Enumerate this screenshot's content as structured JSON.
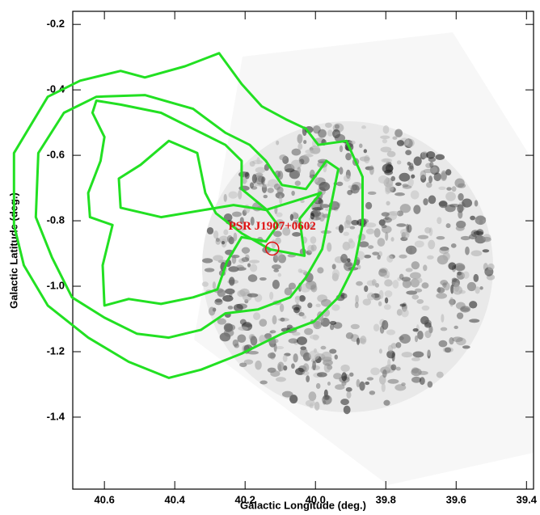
{
  "chart_data": {
    "type": "contour",
    "xlabel": "Galactic Longitude (deg.)",
    "ylabel": "Galactic Latitude (deg.)",
    "xlim": [
      40.69,
      39.38
    ],
    "ylim": [
      -1.62,
      -0.16
    ],
    "xticks": [
      40.6,
      40.4,
      40.2,
      {
        "value": 40,
        "label": "40.0"
      },
      39.8,
      39.6,
      39.4
    ],
    "yticks": [
      -0.2,
      -0.4,
      -0.6,
      -0.8,
      {
        "value": -1,
        "label": "-1.0"
      },
      -1.2,
      -1.4
    ],
    "color": "#22e022",
    "contours": [
      {
        "x": [
          40.857,
          40.761,
          40.669,
          40.554,
          40.485,
          40.371,
          40.274,
          40.21,
          40.153,
          40.084,
          40.027,
          39.992,
          39.912,
          39.866,
          39.866,
          39.889,
          39.935,
          40.004,
          40.095,
          40.21,
          40.325,
          40.417,
          40.531,
          40.646,
          40.761,
          40.829,
          40.857
        ],
        "y": [
          -0.593,
          -0.421,
          -0.372,
          -0.342,
          -0.362,
          -0.328,
          -0.288,
          -0.382,
          -0.45,
          -0.49,
          -0.519,
          -0.568,
          -0.556,
          -0.666,
          -0.813,
          -0.936,
          -1.034,
          -1.108,
          -1.145,
          -1.206,
          -1.255,
          -1.28,
          -1.231,
          -1.157,
          -1.059,
          -0.936,
          -0.813
        ]
      },
      {
        "x": [
          40.788,
          40.715,
          40.623,
          40.485,
          40.348,
          40.256,
          40.187,
          40.141,
          40.095,
          40.027,
          39.969,
          39.935,
          39.958,
          39.981,
          40.027,
          40.072,
          40.164,
          40.256,
          40.325,
          40.417,
          40.508,
          40.6,
          40.692,
          40.749,
          40.795
        ],
        "y": [
          -0.593,
          -0.47,
          -0.421,
          -0.416,
          -0.458,
          -0.531,
          -0.568,
          -0.617,
          -0.691,
          -0.703,
          -0.617,
          -0.642,
          -0.764,
          -0.887,
          -0.973,
          -1.034,
          -1.071,
          -1.083,
          -1.133,
          -1.157,
          -1.145,
          -1.096,
          -1.034,
          -0.912,
          -0.789
        ]
      },
      {
        "x": [
          40.646,
          40.611,
          40.6,
          40.634,
          40.623,
          40.554,
          40.439,
          40.348,
          40.256,
          40.21,
          40.21,
          40.141,
          40.107,
          40.141,
          40.21,
          40.251,
          40.279,
          40.348,
          40.439,
          40.531,
          40.6,
          40.605,
          40.577,
          40.641
        ],
        "y": [
          -0.715,
          -0.617,
          -0.544,
          -0.47,
          -0.433,
          -0.445,
          -0.47,
          -0.519,
          -0.568,
          -0.617,
          -0.703,
          -0.764,
          -0.813,
          -0.863,
          -0.85,
          -0.924,
          -1.01,
          -1.034,
          -1.054,
          -1.039,
          -1.059,
          -0.936,
          -0.813,
          -0.789
        ]
      },
      {
        "x": [
          40.559,
          40.497,
          40.417,
          40.336,
          40.313,
          40.283,
          40.21,
          40.13,
          40.031,
          40.045,
          39.985,
          40.141,
          40.233,
          40.439,
          40.554
        ],
        "y": [
          -0.671,
          -0.629,
          -0.556,
          -0.593,
          -0.715,
          -0.777,
          -0.838,
          -0.887,
          -0.907,
          -0.794,
          -0.715,
          -0.767,
          -0.752,
          -0.789,
          -0.76
        ]
      }
    ],
    "annotation": {
      "text": "PSR J1907+0602",
      "x": 40.123,
      "y": -0.885,
      "color": "#e01010"
    }
  }
}
